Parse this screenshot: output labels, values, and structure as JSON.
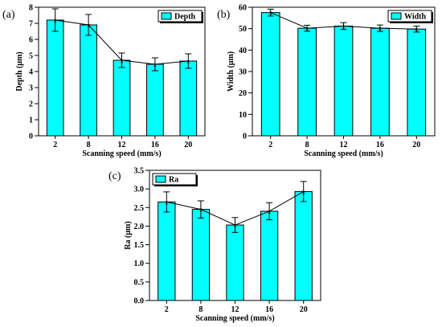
{
  "chart_data": [
    {
      "type": "bar",
      "panel_label": "(a)",
      "categories": [
        "2",
        "8",
        "12",
        "16",
        "20"
      ],
      "values": [
        7.2,
        6.9,
        4.7,
        4.45,
        4.65
      ],
      "errors": [
        0.7,
        0.65,
        0.45,
        0.4,
        0.45
      ],
      "line_overlay": true,
      "xlabel": "Scanning speed (mm/s)",
      "ylabel": "Depth (μm)",
      "ylim": [
        0,
        8
      ],
      "yticks": [
        "0",
        "1",
        "2",
        "3",
        "4",
        "5",
        "6",
        "7",
        "8"
      ],
      "legend": "Depth",
      "legend_position": "top-right",
      "bar_color": "#00FFFF",
      "grid": false
    },
    {
      "type": "bar",
      "panel_label": "(b)",
      "categories": [
        "2",
        "8",
        "12",
        "16",
        "20"
      ],
      "values": [
        57.5,
        50.2,
        51.2,
        50.2,
        49.8
      ],
      "errors": [
        1.6,
        1.4,
        1.6,
        1.5,
        1.4
      ],
      "line_overlay": true,
      "xlabel": "Scanning speed (mm/s)",
      "ylabel": "Width (μm)",
      "ylim": [
        0,
        60
      ],
      "yticks": [
        "0",
        "10",
        "20",
        "30",
        "40",
        "50",
        "60"
      ],
      "legend": "Width",
      "legend_position": "top-right",
      "bar_color": "#00FFFF",
      "grid": false
    },
    {
      "type": "bar",
      "panel_label": "(c)",
      "categories": [
        "2",
        "8",
        "12",
        "16",
        "20"
      ],
      "values": [
        2.65,
        2.45,
        2.03,
        2.4,
        2.93
      ],
      "errors": [
        0.27,
        0.23,
        0.2,
        0.23,
        0.27
      ],
      "line_overlay": true,
      "xlabel": "Scanning speed (mm/s)",
      "ylabel": "Ra (μm)",
      "ylim": [
        0,
        3.5
      ],
      "yticks": [
        "0.0",
        "0.5",
        "1.0",
        "1.5",
        "2.0",
        "2.5",
        "3.0",
        "3.5"
      ],
      "legend": "Ra",
      "legend_position": "top-left",
      "bar_color": "#00FFFF",
      "grid": false
    }
  ]
}
